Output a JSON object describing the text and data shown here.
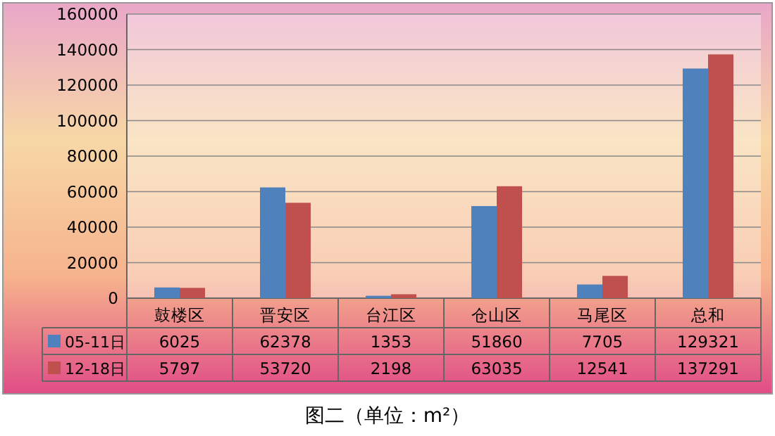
{
  "chart_data": {
    "type": "bar",
    "title": "图二（单位：m²）",
    "categories": [
      "鼓楼区",
      "晋安区",
      "台江区",
      "仓山区",
      "马尾区",
      "总和"
    ],
    "series": [
      {
        "name": "05-11日",
        "color": "#4f81bd",
        "values": [
          6025,
          62378,
          1353,
          51860,
          7705,
          129321
        ]
      },
      {
        "name": "12-18日",
        "color": "#c0504d",
        "values": [
          5797,
          53720,
          2198,
          63035,
          12541,
          137291
        ]
      }
    ],
    "ylim": [
      0,
      160000
    ],
    "yticks": [
      0,
      20000,
      40000,
      60000,
      80000,
      100000,
      120000,
      140000,
      160000
    ],
    "grid": "y",
    "legend": "bottom",
    "data_labels": true
  }
}
